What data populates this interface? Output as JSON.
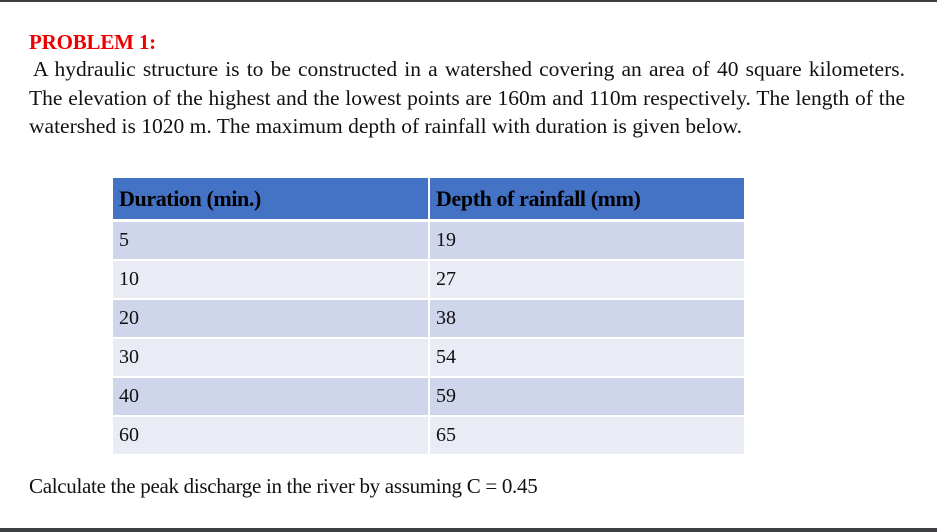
{
  "problem": {
    "title": "PROBLEM 1:",
    "statement": "A hydraulic structure is to be constructed in a watershed covering an area of 40 square kilometers. The elevation of the highest and the lowest points are 160m and 110m respectively. The length of the watershed is 1020 m. The maximum depth of rainfall with duration is given below.",
    "question": "Calculate the peak discharge in the river by assuming C = 0.45"
  },
  "table": {
    "headers": [
      "Duration (min.)",
      "Depth of rainfall (mm)"
    ],
    "rows": [
      [
        "5",
        "19"
      ],
      [
        "10",
        "27"
      ],
      [
        "20",
        "38"
      ],
      [
        "30",
        "54"
      ],
      [
        "40",
        "59"
      ],
      [
        "60",
        "65"
      ]
    ]
  },
  "colors": {
    "title": "#ee0000",
    "header_bg": "#4472c4",
    "row_odd_bg": "#cfd5ea",
    "row_even_bg": "#e9ebf5"
  }
}
